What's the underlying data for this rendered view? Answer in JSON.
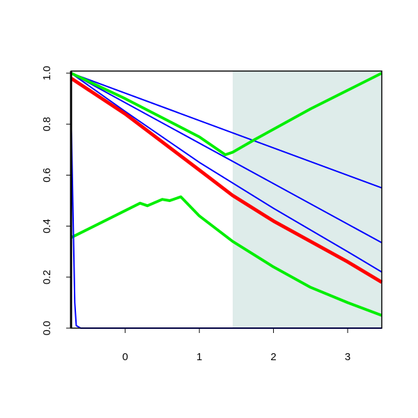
{
  "chart_data": {
    "type": "line",
    "xlim": [
      -0.73,
      3.46
    ],
    "ylim": [
      0,
      1
    ],
    "xticks": [
      0,
      1,
      2,
      3
    ],
    "yticks": [
      {
        "value": 0,
        "label": "0.0"
      },
      {
        "value": 0.2,
        "label": "0.2"
      },
      {
        "value": 0.4,
        "label": "0.4"
      },
      {
        "value": 0.6,
        "label": "0.6"
      },
      {
        "value": 0.8,
        "label": "0.8"
      },
      {
        "value": 1,
        "label": "1.0"
      }
    ],
    "shaded_region": {
      "from": 1.45,
      "to": 3.46,
      "color": "#deecea"
    },
    "series": [
      {
        "color": "#0000ff",
        "width": 2,
        "x": [
          -0.73,
          3.46
        ],
        "values": [
          1.0,
          0.55
        ]
      },
      {
        "color": "#0000ff",
        "width": 2,
        "x": [
          -0.73,
          3.46
        ],
        "values": [
          1.0,
          0.335
        ]
      },
      {
        "color": "#0000ff",
        "width": 2,
        "x": [
          -0.73,
          0,
          1,
          2,
          3,
          3.46
        ],
        "values": [
          1.0,
          0.85,
          0.65,
          0.47,
          0.3,
          0.22
        ]
      },
      {
        "color": "#ff0000",
        "width": 5,
        "x": [
          -0.73,
          0,
          1,
          1.45,
          2,
          3,
          3.46
        ],
        "values": [
          0.98,
          0.84,
          0.62,
          0.52,
          0.42,
          0.26,
          0.18
        ]
      },
      {
        "color": "#00ee00",
        "width": 4,
        "x": [
          -0.73,
          0,
          1,
          1.35,
          1.45,
          1.75,
          2.5,
          3.46
        ],
        "values": [
          1.0,
          0.9,
          0.75,
          0.68,
          0.69,
          0.74,
          0.86,
          1.0
        ]
      },
      {
        "color": "#00ee00",
        "width": 4,
        "x": [
          -0.73,
          0.2,
          0.3,
          0.5,
          0.6,
          0.75,
          1,
          1.45,
          2,
          2.5,
          3,
          3.46
        ],
        "values": [
          0.355,
          0.49,
          0.48,
          0.505,
          0.5,
          0.515,
          0.44,
          0.34,
          0.24,
          0.16,
          0.1,
          0.05
        ]
      },
      {
        "color": "#0000ff",
        "width": 2,
        "x": [
          -0.73,
          -0.7,
          -0.68,
          -0.66,
          -0.6,
          3.46
        ],
        "values": [
          0.85,
          0.4,
          0.1,
          0.01,
          0,
          0
        ]
      }
    ]
  }
}
